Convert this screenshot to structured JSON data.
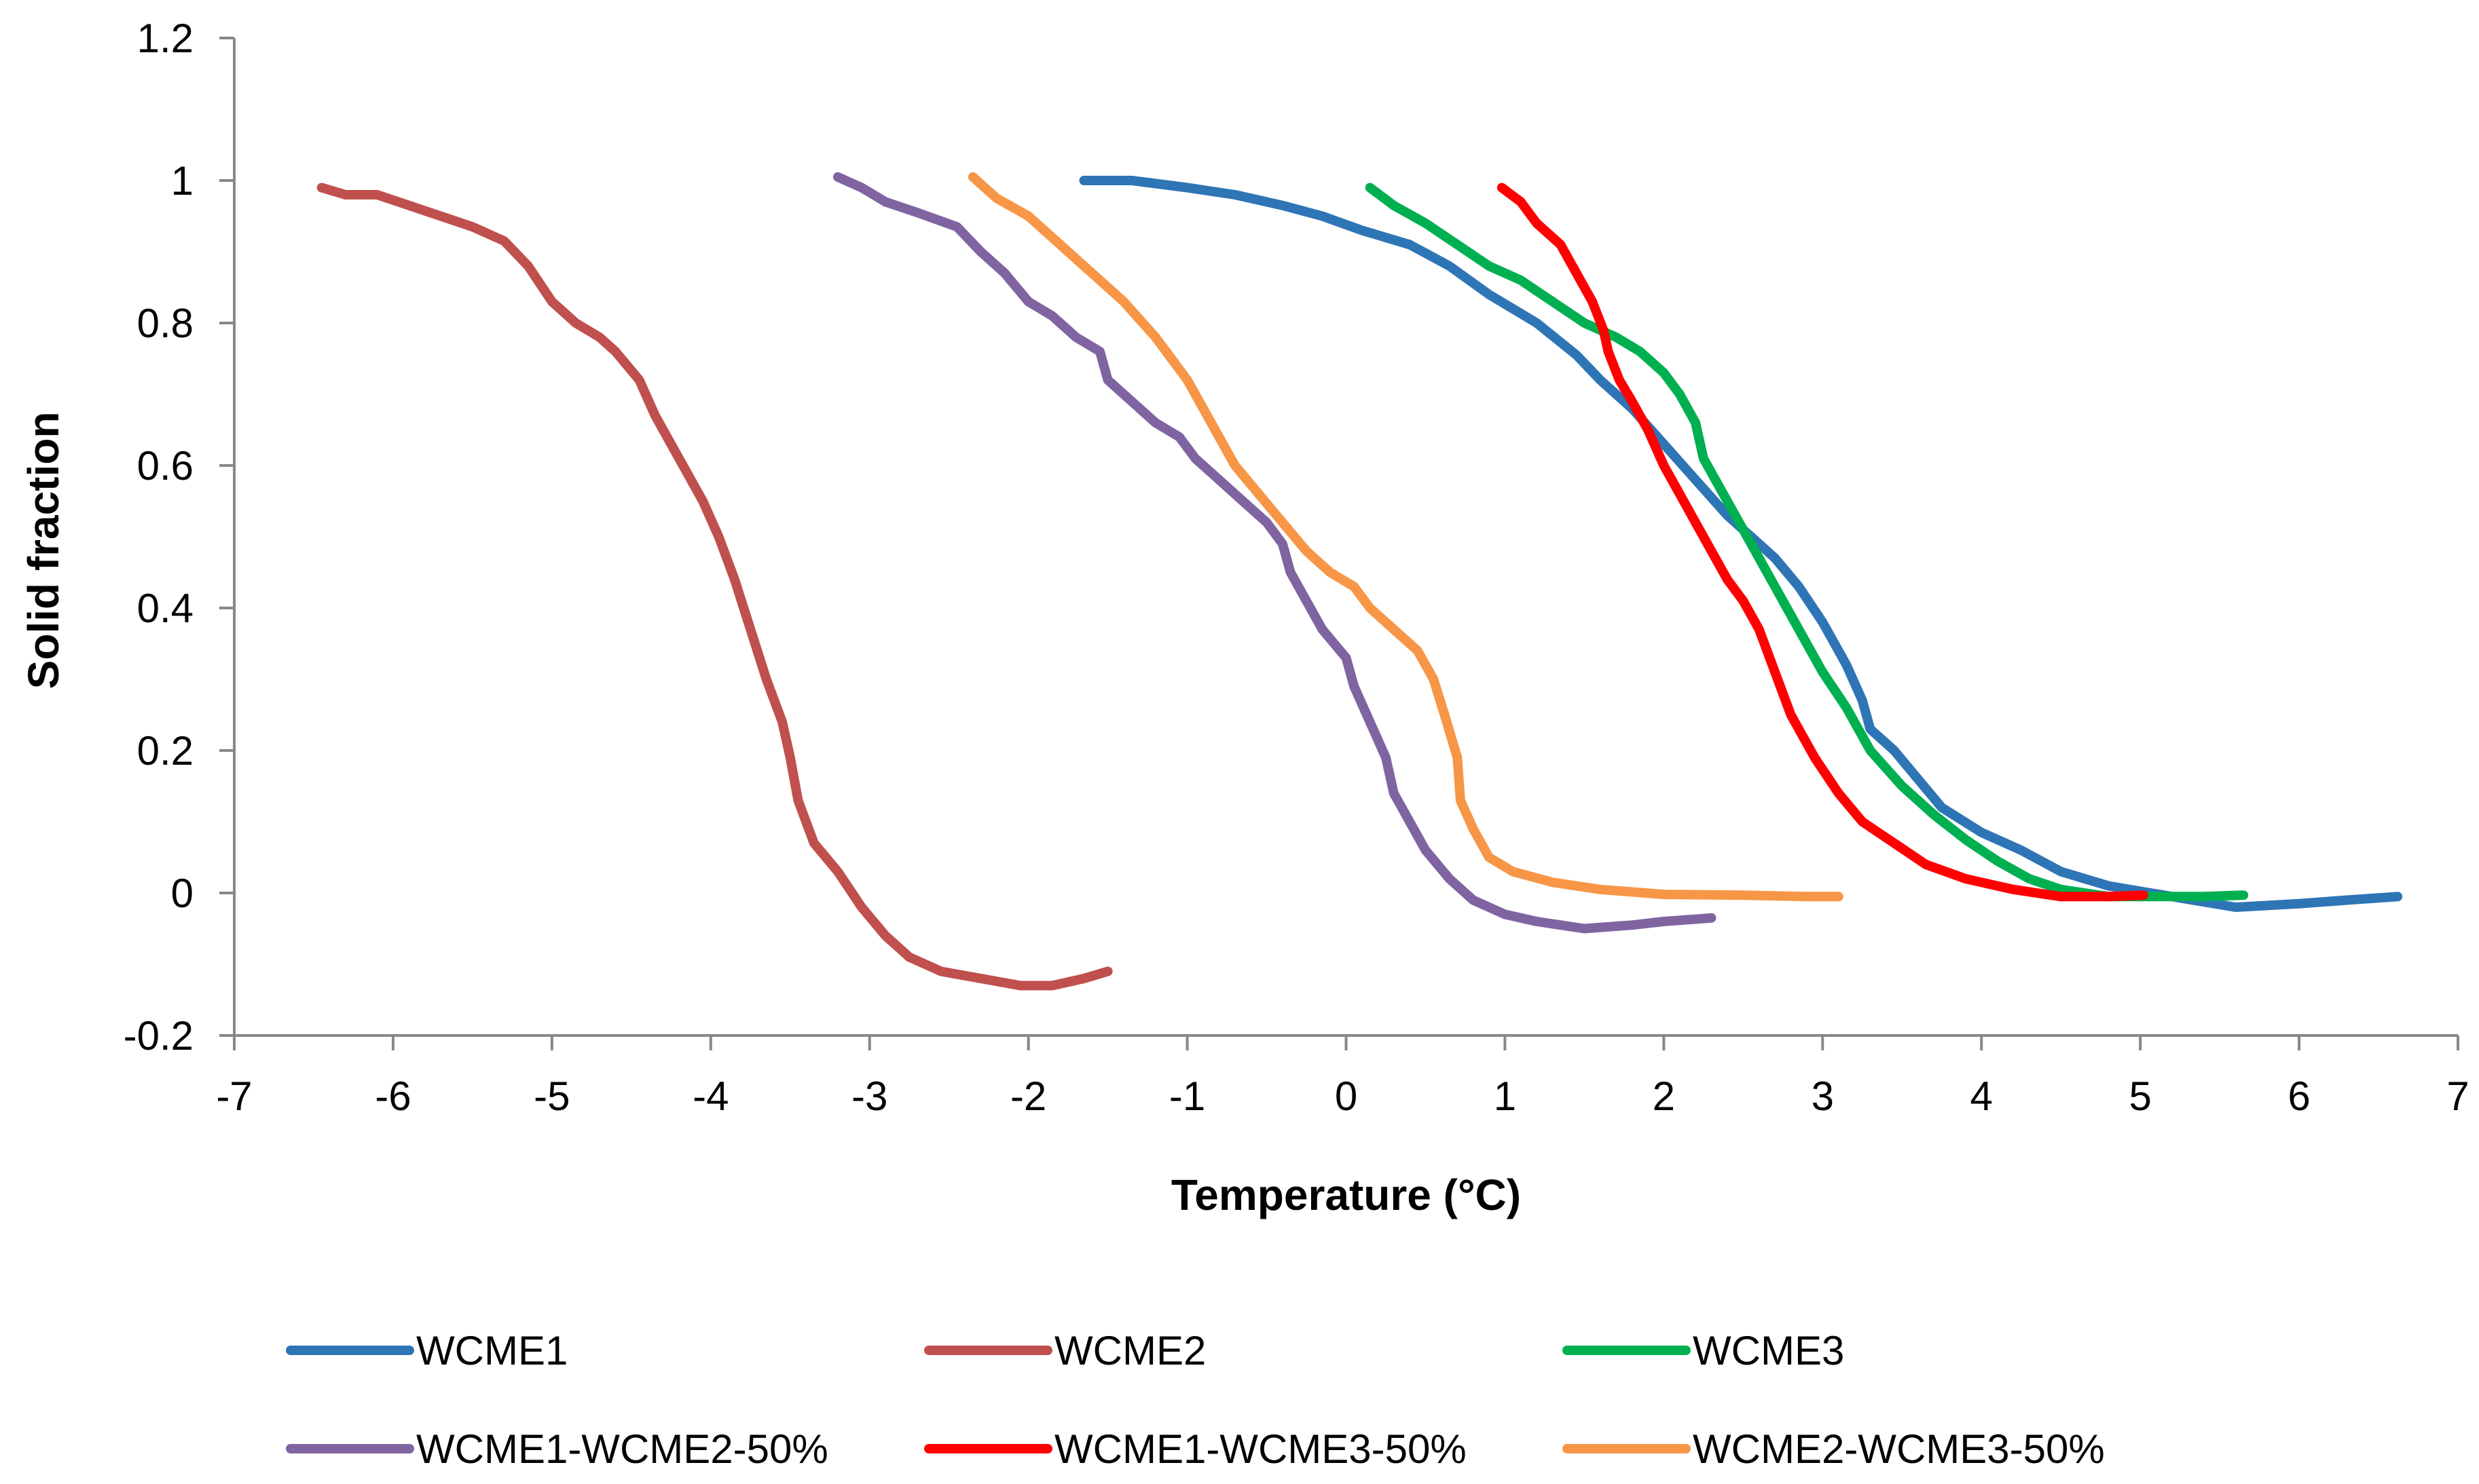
{
  "chart_data": {
    "type": "line",
    "title": "",
    "xlabel": "Temperature (°C)",
    "ylabel": "Solid fraction",
    "xlim": [
      -7,
      7
    ],
    "ylim": [
      -0.2,
      1.2
    ],
    "xticks": [
      -7,
      -6,
      -5,
      -4,
      -3,
      -2,
      -1,
      0,
      1,
      2,
      3,
      4,
      5,
      6,
      7
    ],
    "yticks": [
      -0.2,
      0,
      0.2,
      0.4,
      0.6,
      0.8,
      1,
      1.2
    ],
    "xtick_labels": [
      "-7",
      "-6",
      "-5",
      "-4",
      "-3",
      "-2",
      "-1",
      "0",
      "1",
      "2",
      "3",
      "4",
      "5",
      "6",
      "7"
    ],
    "ytick_labels": [
      "-0.2",
      "0",
      "0.2",
      "0.4",
      "0.6",
      "0.8",
      "1",
      "1.2"
    ],
    "grid": false,
    "legend_position": "bottom",
    "series": [
      {
        "name": "WCME1",
        "color": "#2E75B6",
        "points": [
          [
            -1.65,
            1.0
          ],
          [
            -1.35,
            1.0
          ],
          [
            -1.0,
            0.99
          ],
          [
            -0.7,
            0.98
          ],
          [
            -0.4,
            0.965
          ],
          [
            -0.15,
            0.95
          ],
          [
            0.1,
            0.93
          ],
          [
            0.4,
            0.91
          ],
          [
            0.65,
            0.88
          ],
          [
            0.9,
            0.84
          ],
          [
            1.2,
            0.8
          ],
          [
            1.45,
            0.755
          ],
          [
            1.6,
            0.72
          ],
          [
            1.8,
            0.68
          ],
          [
            2.0,
            0.63
          ],
          [
            2.2,
            0.58
          ],
          [
            2.4,
            0.53
          ],
          [
            2.55,
            0.5
          ],
          [
            2.7,
            0.47
          ],
          [
            2.85,
            0.43
          ],
          [
            3.0,
            0.38
          ],
          [
            3.15,
            0.32
          ],
          [
            3.25,
            0.27
          ],
          [
            3.3,
            0.23
          ],
          [
            3.45,
            0.2
          ],
          [
            3.6,
            0.16
          ],
          [
            3.75,
            0.12
          ],
          [
            4.0,
            0.085
          ],
          [
            4.25,
            0.06
          ],
          [
            4.5,
            0.03
          ],
          [
            4.8,
            0.01
          ],
          [
            5.2,
            -0.005
          ],
          [
            5.6,
            -0.02
          ],
          [
            6.0,
            -0.015
          ],
          [
            6.3,
            -0.01
          ],
          [
            6.62,
            -0.005
          ]
        ]
      },
      {
        "name": "WCME2",
        "color": "#C0504D",
        "points": [
          [
            -6.45,
            0.99
          ],
          [
            -6.3,
            0.98
          ],
          [
            -6.1,
            0.98
          ],
          [
            -5.9,
            0.965
          ],
          [
            -5.7,
            0.95
          ],
          [
            -5.5,
            0.935
          ],
          [
            -5.3,
            0.915
          ],
          [
            -5.15,
            0.88
          ],
          [
            -5.0,
            0.83
          ],
          [
            -4.85,
            0.8
          ],
          [
            -4.7,
            0.78
          ],
          [
            -4.6,
            0.76
          ],
          [
            -4.45,
            0.72
          ],
          [
            -4.35,
            0.67
          ],
          [
            -4.2,
            0.61
          ],
          [
            -4.05,
            0.55
          ],
          [
            -3.95,
            0.5
          ],
          [
            -3.85,
            0.44
          ],
          [
            -3.75,
            0.37
          ],
          [
            -3.65,
            0.3
          ],
          [
            -3.55,
            0.24
          ],
          [
            -3.5,
            0.19
          ],
          [
            -3.45,
            0.13
          ],
          [
            -3.35,
            0.07
          ],
          [
            -3.2,
            0.03
          ],
          [
            -3.05,
            -0.02
          ],
          [
            -2.9,
            -0.06
          ],
          [
            -2.75,
            -0.09
          ],
          [
            -2.55,
            -0.11
          ],
          [
            -2.3,
            -0.12
          ],
          [
            -2.05,
            -0.13
          ],
          [
            -1.85,
            -0.13
          ],
          [
            -1.65,
            -0.12
          ],
          [
            -1.5,
            -0.11
          ]
        ]
      },
      {
        "name": "WCME3",
        "color": "#00B050",
        "points": [
          [
            0.15,
            0.99
          ],
          [
            0.3,
            0.965
          ],
          [
            0.5,
            0.94
          ],
          [
            0.7,
            0.91
          ],
          [
            0.9,
            0.88
          ],
          [
            1.1,
            0.86
          ],
          [
            1.3,
            0.83
          ],
          [
            1.5,
            0.8
          ],
          [
            1.7,
            0.78
          ],
          [
            1.85,
            0.76
          ],
          [
            2.0,
            0.73
          ],
          [
            2.1,
            0.7
          ],
          [
            2.2,
            0.66
          ],
          [
            2.25,
            0.61
          ],
          [
            2.35,
            0.57
          ],
          [
            2.45,
            0.53
          ],
          [
            2.55,
            0.49
          ],
          [
            2.65,
            0.45
          ],
          [
            2.75,
            0.41
          ],
          [
            2.85,
            0.37
          ],
          [
            3.0,
            0.31
          ],
          [
            3.15,
            0.26
          ],
          [
            3.3,
            0.2
          ],
          [
            3.5,
            0.15
          ],
          [
            3.7,
            0.11
          ],
          [
            3.9,
            0.075
          ],
          [
            4.1,
            0.045
          ],
          [
            4.3,
            0.02
          ],
          [
            4.5,
            0.005
          ],
          [
            4.8,
            -0.005
          ],
          [
            5.1,
            -0.005
          ],
          [
            5.4,
            -0.005
          ],
          [
            5.65,
            -0.003
          ]
        ]
      },
      {
        "name": "WCME1-WCME2-50%",
        "color": "#8064A2",
        "points": [
          [
            -3.2,
            1.005
          ],
          [
            -3.05,
            0.99
          ],
          [
            -2.9,
            0.97
          ],
          [
            -2.7,
            0.955
          ],
          [
            -2.45,
            0.935
          ],
          [
            -2.3,
            0.9
          ],
          [
            -2.15,
            0.87
          ],
          [
            -2.0,
            0.83
          ],
          [
            -1.85,
            0.81
          ],
          [
            -1.7,
            0.78
          ],
          [
            -1.55,
            0.76
          ],
          [
            -1.5,
            0.72
          ],
          [
            -1.35,
            0.69
          ],
          [
            -1.2,
            0.66
          ],
          [
            -1.05,
            0.64
          ],
          [
            -0.95,
            0.61
          ],
          [
            -0.8,
            0.58
          ],
          [
            -0.65,
            0.55
          ],
          [
            -0.5,
            0.52
          ],
          [
            -0.4,
            0.49
          ],
          [
            -0.35,
            0.45
          ],
          [
            -0.25,
            0.41
          ],
          [
            -0.15,
            0.37
          ],
          [
            0.0,
            0.33
          ],
          [
            0.05,
            0.29
          ],
          [
            0.15,
            0.24
          ],
          [
            0.25,
            0.19
          ],
          [
            0.3,
            0.14
          ],
          [
            0.4,
            0.1
          ],
          [
            0.5,
            0.06
          ],
          [
            0.65,
            0.02
          ],
          [
            0.8,
            -0.01
          ],
          [
            1.0,
            -0.03
          ],
          [
            1.2,
            -0.04
          ],
          [
            1.5,
            -0.05
          ],
          [
            1.8,
            -0.045
          ],
          [
            2.0,
            -0.04
          ],
          [
            2.3,
            -0.035
          ]
        ]
      },
      {
        "name": "WCME1-WCME3-50%",
        "color": "#FF0000",
        "points": [
          [
            0.98,
            0.99
          ],
          [
            1.1,
            0.97
          ],
          [
            1.2,
            0.94
          ],
          [
            1.35,
            0.91
          ],
          [
            1.45,
            0.87
          ],
          [
            1.55,
            0.83
          ],
          [
            1.62,
            0.79
          ],
          [
            1.65,
            0.76
          ],
          [
            1.72,
            0.72
          ],
          [
            1.8,
            0.69
          ],
          [
            1.9,
            0.65
          ],
          [
            2.0,
            0.6
          ],
          [
            2.1,
            0.56
          ],
          [
            2.2,
            0.52
          ],
          [
            2.3,
            0.48
          ],
          [
            2.4,
            0.44
          ],
          [
            2.5,
            0.41
          ],
          [
            2.6,
            0.37
          ],
          [
            2.7,
            0.31
          ],
          [
            2.8,
            0.25
          ],
          [
            2.95,
            0.19
          ],
          [
            3.1,
            0.14
          ],
          [
            3.25,
            0.1
          ],
          [
            3.45,
            0.07
          ],
          [
            3.65,
            0.04
          ],
          [
            3.9,
            0.02
          ],
          [
            4.2,
            0.005
          ],
          [
            4.5,
            -0.005
          ],
          [
            4.8,
            -0.005
          ],
          [
            5.02,
            -0.003
          ]
        ]
      },
      {
        "name": "WCME2-WCME3-50%",
        "color": "#F79646",
        "points": [
          [
            -2.35,
            1.005
          ],
          [
            -2.2,
            0.975
          ],
          [
            -2.0,
            0.95
          ],
          [
            -1.8,
            0.91
          ],
          [
            -1.6,
            0.87
          ],
          [
            -1.4,
            0.83
          ],
          [
            -1.2,
            0.78
          ],
          [
            -1.0,
            0.72
          ],
          [
            -0.85,
            0.66
          ],
          [
            -0.7,
            0.6
          ],
          [
            -0.55,
            0.56
          ],
          [
            -0.4,
            0.52
          ],
          [
            -0.25,
            0.48
          ],
          [
            -0.1,
            0.45
          ],
          [
            0.05,
            0.43
          ],
          [
            0.15,
            0.4
          ],
          [
            0.3,
            0.37
          ],
          [
            0.45,
            0.34
          ],
          [
            0.55,
            0.3
          ],
          [
            0.62,
            0.25
          ],
          [
            0.7,
            0.19
          ],
          [
            0.72,
            0.13
          ],
          [
            0.8,
            0.09
          ],
          [
            0.9,
            0.05
          ],
          [
            1.05,
            0.03
          ],
          [
            1.3,
            0.015
          ],
          [
            1.6,
            0.005
          ],
          [
            2.0,
            -0.002
          ],
          [
            2.5,
            -0.003
          ],
          [
            2.9,
            -0.005
          ],
          [
            3.1,
            -0.005
          ]
        ]
      }
    ]
  }
}
